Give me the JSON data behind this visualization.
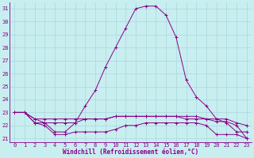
{
  "xlabel": "Windchill (Refroidissement éolien,°C)",
  "background_color": "#c8eef0",
  "grid_color": "#a8d8dc",
  "line_color": "#880088",
  "xlim": [
    -0.5,
    23.5
  ],
  "ylim": [
    20.7,
    31.5
  ],
  "yticks": [
    21,
    22,
    23,
    24,
    25,
    26,
    27,
    28,
    29,
    30,
    31
  ],
  "xticks": [
    0,
    1,
    2,
    3,
    4,
    5,
    6,
    7,
    8,
    9,
    10,
    11,
    12,
    13,
    14,
    15,
    16,
    17,
    18,
    19,
    20,
    21,
    22,
    23
  ],
  "series": [
    [
      23.0,
      23.0,
      22.5,
      22.2,
      21.5,
      21.5,
      22.2,
      23.5,
      24.7,
      26.5,
      28.0,
      29.5,
      31.0,
      31.2,
      31.2,
      30.5,
      28.8,
      25.5,
      24.2,
      23.5,
      22.5,
      22.2,
      21.5,
      21.5
    ],
    [
      23.0,
      23.0,
      22.2,
      22.2,
      22.2,
      22.2,
      22.2,
      22.5,
      22.5,
      22.5,
      22.7,
      22.7,
      22.7,
      22.7,
      22.7,
      22.7,
      22.7,
      22.7,
      22.7,
      22.5,
      22.5,
      22.5,
      22.2,
      22.0
    ],
    [
      23.0,
      23.0,
      22.2,
      22.0,
      21.3,
      21.3,
      21.5,
      21.5,
      21.5,
      21.5,
      21.7,
      22.0,
      22.0,
      22.2,
      22.2,
      22.2,
      22.2,
      22.2,
      22.2,
      22.0,
      21.3,
      21.3,
      21.3,
      21.0
    ],
    [
      23.0,
      23.0,
      22.5,
      22.5,
      22.5,
      22.5,
      22.5,
      22.5,
      22.5,
      22.5,
      22.7,
      22.7,
      22.7,
      22.7,
      22.7,
      22.7,
      22.7,
      22.5,
      22.5,
      22.5,
      22.3,
      22.3,
      22.0,
      21.0
    ]
  ],
  "tick_fontsize": 5,
  "xlabel_fontsize": 5.5
}
